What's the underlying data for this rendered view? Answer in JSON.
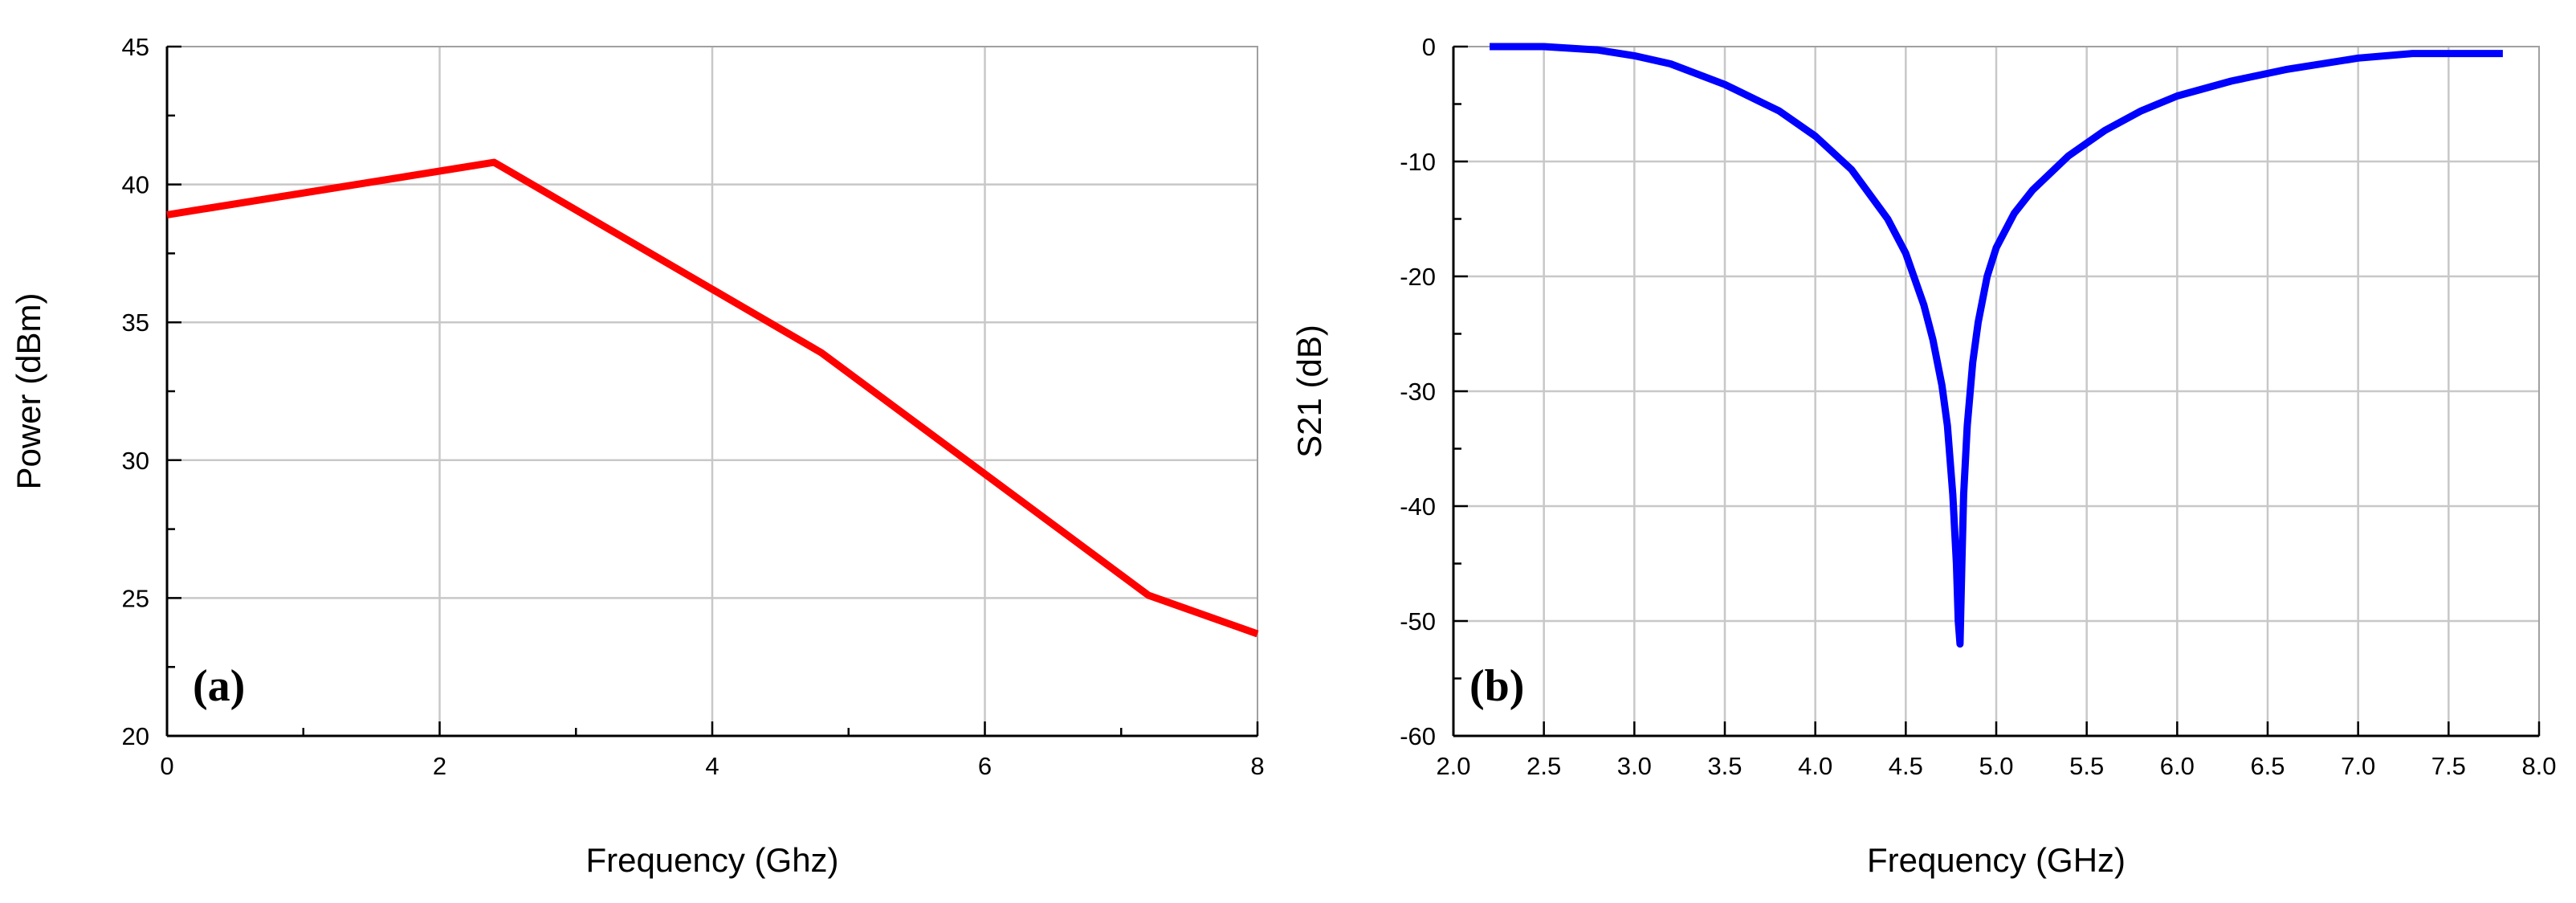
{
  "chart_data": [
    {
      "type": "line",
      "panel_label": "(a)",
      "xlabel": "Frequency (Ghz)",
      "ylabel": "Power (dBm)",
      "xlim": [
        0,
        8
      ],
      "ylim": [
        20,
        45
      ],
      "xticks": [
        0,
        2,
        4,
        6,
        8
      ],
      "yticks": [
        20,
        25,
        30,
        35,
        40,
        45
      ],
      "grid": true,
      "series": [
        {
          "color": "#ff0000",
          "x": [
            0,
            2.4,
            4.8,
            7.2,
            8
          ],
          "y": [
            38.9,
            40.8,
            33.9,
            25.1,
            23.7
          ]
        }
      ]
    },
    {
      "type": "line",
      "panel_label": "(b)",
      "xlabel": "Frequency (GHz)",
      "ylabel": "S21 (dB)",
      "xlim": [
        2.0,
        8.0
      ],
      "ylim": [
        -60,
        0
      ],
      "xticks": [
        "2.0",
        "2.5",
        "3.0",
        "3.5",
        "4.0",
        "4.5",
        "5.0",
        "5.5",
        "6.0",
        "6.5",
        "7.0",
        "7.5",
        "8.0"
      ],
      "yticks": [
        "0",
        "-10",
        "-20",
        "-30",
        "-40",
        "-50",
        "-60"
      ],
      "grid": true,
      "series": [
        {
          "color": "#0000ff",
          "x": [
            2.2,
            2.5,
            2.8,
            3.0,
            3.2,
            3.5,
            3.8,
            4.0,
            4.2,
            4.4,
            4.5,
            4.6,
            4.65,
            4.7,
            4.73,
            4.76,
            4.78,
            4.79,
            4.8,
            4.81,
            4.82,
            4.84,
            4.87,
            4.9,
            4.95,
            5.0,
            5.1,
            5.2,
            5.4,
            5.6,
            5.8,
            6.0,
            6.3,
            6.6,
            7.0,
            7.3,
            7.8
          ],
          "y": [
            0,
            0,
            -0.3,
            -0.8,
            -1.5,
            -3.3,
            -5.6,
            -7.8,
            -10.7,
            -15,
            -18,
            -22.5,
            -25.5,
            -29.5,
            -33,
            -39,
            -45,
            -50,
            -52,
            -45,
            -39,
            -33,
            -27.5,
            -24,
            -20,
            -17.5,
            -14.5,
            -12.5,
            -9.5,
            -7.3,
            -5.6,
            -4.3,
            -3,
            -2,
            -1,
            -0.6,
            -0.6
          ]
        }
      ]
    }
  ]
}
